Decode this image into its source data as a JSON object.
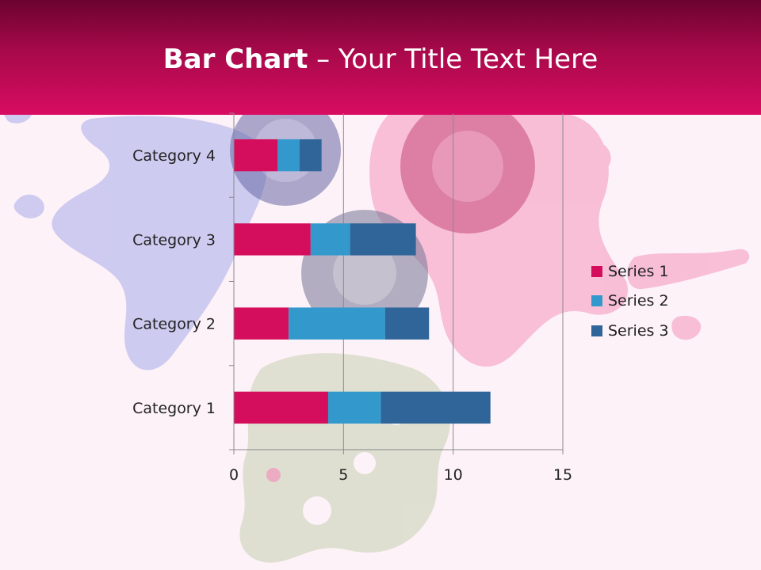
{
  "slide": {
    "title_bold": "Bar Chart",
    "title_separator": " – ",
    "title_rest": "Your Title Text Here"
  },
  "colors": {
    "header_dark": "#6b0330",
    "header_light": "#d80c62",
    "background": "#fdf2f8",
    "series": [
      "#d40e5c",
      "#3399cc",
      "#2f6599"
    ]
  },
  "background_art": {
    "description_icons": [
      "blue-polish-splash-icon",
      "pink-polish-splash-icon",
      "gold-polish-splash-icon",
      "polish-bottle-icon"
    ]
  },
  "chart_data": {
    "type": "bar",
    "orientation": "horizontal",
    "stacked": true,
    "categories": [
      "Category 1",
      "Category 2",
      "Category 3",
      "Category 4"
    ],
    "series": [
      {
        "name": "Series 1",
        "values": [
          4.3,
          2.5,
          3.5,
          2
        ]
      },
      {
        "name": "Series 2",
        "values": [
          2.4,
          4.4,
          1.8,
          1
        ]
      },
      {
        "name": "Series 3",
        "values": [
          5,
          2,
          3,
          1
        ]
      }
    ],
    "xlim": [
      0,
      15
    ],
    "x_ticks": [
      0,
      5,
      10,
      15
    ],
    "grid": true,
    "legend_position": "right"
  }
}
